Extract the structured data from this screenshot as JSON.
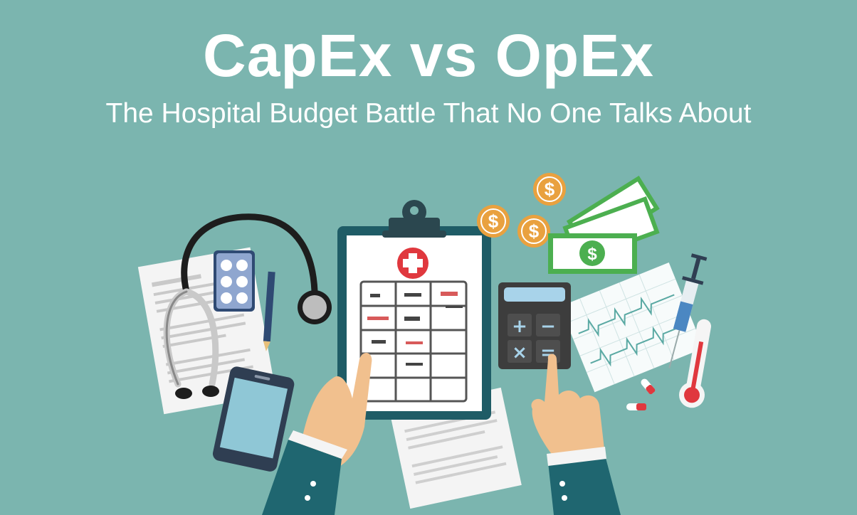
{
  "header": {
    "title": "CapEx vs OpEx",
    "subtitle": "The Hospital Budget Battle That No One Talks About"
  },
  "illustration": {
    "coin_symbol": "$",
    "bill_symbol": "$",
    "calculator_keys": [
      "+",
      "−",
      "×",
      "="
    ],
    "colors": {
      "background": "#7bb5af",
      "clipboard": "#1f5c66",
      "cross": "#e0383e",
      "coin": "#e9a13f",
      "money": "#4caf50",
      "skin": "#f1c08e",
      "sleeve": "#1f6670"
    }
  }
}
